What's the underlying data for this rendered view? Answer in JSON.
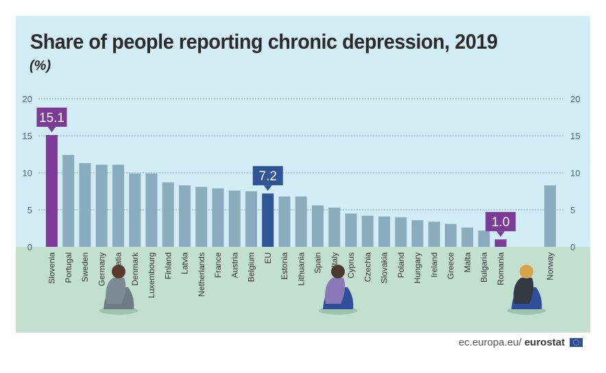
{
  "title": "Share of people reporting chronic depression, 2019",
  "unit": "(%)",
  "footer": {
    "site": "ec.europa.eu/",
    "brand": "eurostat"
  },
  "colors": {
    "default_bar": "#8aacbd",
    "highlight_max_min": "#7b3b97",
    "eu_bar": "#2f5597"
  },
  "chart_data": {
    "type": "bar",
    "title": "Share of people reporting chronic depression, 2019",
    "ylabel": "(%)",
    "xlabel": "",
    "ylim": [
      0,
      20
    ],
    "yticks": [
      0,
      5,
      10,
      15,
      20
    ],
    "grid": true,
    "categories": [
      "Slovenia",
      "Portugal",
      "Sweden",
      "Germany",
      "Croatia",
      "Denmark",
      "Luxembourg",
      "Finland",
      "Latvia",
      "Netherlands",
      "France",
      "Austria",
      "Belgium",
      "EU",
      "Estonia",
      "Lithuania",
      "Spain",
      "Italy",
      "Cyprus",
      "Czechia",
      "Slovakia",
      "Poland",
      "Hungary",
      "Ireland",
      "Greece",
      "Malta",
      "Bulgaria",
      "Romania",
      "Norway"
    ],
    "values": [
      15.1,
      12.4,
      11.3,
      11.1,
      11.1,
      9.9,
      9.9,
      8.7,
      8.3,
      8.1,
      7.9,
      7.6,
      7.5,
      7.2,
      6.8,
      6.8,
      5.6,
      5.3,
      4.5,
      4.2,
      4.1,
      4.0,
      3.6,
      3.4,
      3.1,
      2.6,
      2.2,
      1.0,
      8.3
    ],
    "callouts": [
      {
        "category": "Slovenia",
        "label": "15.1"
      },
      {
        "category": "EU",
        "label": "7.2"
      },
      {
        "category": "Romania",
        "label": "1.0"
      }
    ]
  }
}
